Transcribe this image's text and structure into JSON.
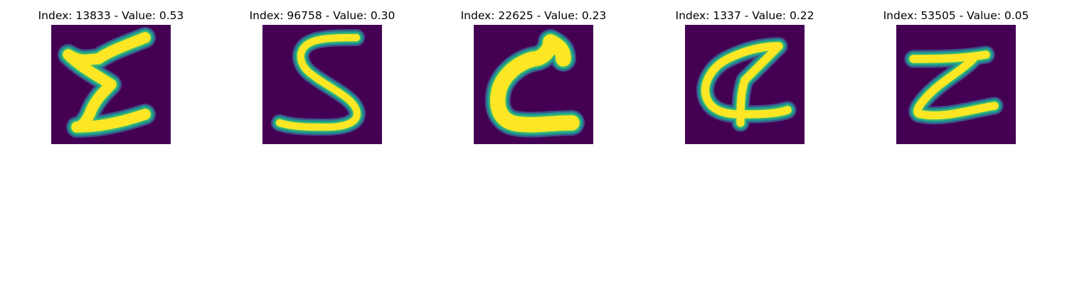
{
  "background_color": "#440154",
  "stroke_colors": {
    "core": "#fde725",
    "mid": "#35b779",
    "edge": "#21918c",
    "outer": "#3b528b"
  },
  "panels": [
    {
      "title": "Index: 13833 - Value: 0.53",
      "image": "handwritten-glyph-sigma"
    },
    {
      "title": "Index: 96758 - Value: 0.30",
      "image": "handwritten-glyph-s"
    },
    {
      "title": "Index: 22625 - Value: 0.23",
      "image": "handwritten-glyph-c"
    },
    {
      "title": "Index: 1337 - Value: 0.22",
      "image": "handwritten-glyph-a"
    },
    {
      "title": "Index: 53505 - Value: 0.05",
      "image": "handwritten-glyph-z"
    }
  ]
}
